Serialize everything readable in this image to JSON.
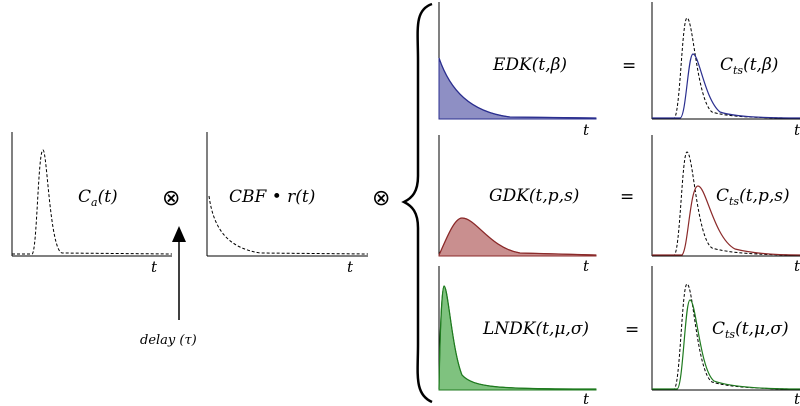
{
  "input": {
    "arterial_label": "C",
    "arterial_sub": "a",
    "arterial_args": "(t)",
    "residue_label": "CBF • r(t)",
    "delay_label": "delay (τ)",
    "axis_t": "t"
  },
  "operators": {
    "convolve_1": "⊗",
    "convolve_2": "⊗",
    "equals": "="
  },
  "kernels": [
    {
      "name": "EDK(t,β)",
      "result_main": "C",
      "result_sub": "ts",
      "result_args": "(t,β)",
      "fill_color": "#8e8fc4",
      "line_color": "#2b2f8f"
    },
    {
      "name": "GDK(t,p,s)",
      "result_main": "C",
      "result_sub": "ts",
      "result_args": "(t,p,s)",
      "fill_color": "#c98f8f",
      "line_color": "#8b2a2a"
    },
    {
      "name": "LNDK(t,μ,σ)",
      "result_main": "C",
      "result_sub": "ts",
      "result_args": "(t,μ,σ)",
      "fill_color": "#7fc27f",
      "line_color": "#1f7a1f"
    }
  ]
}
